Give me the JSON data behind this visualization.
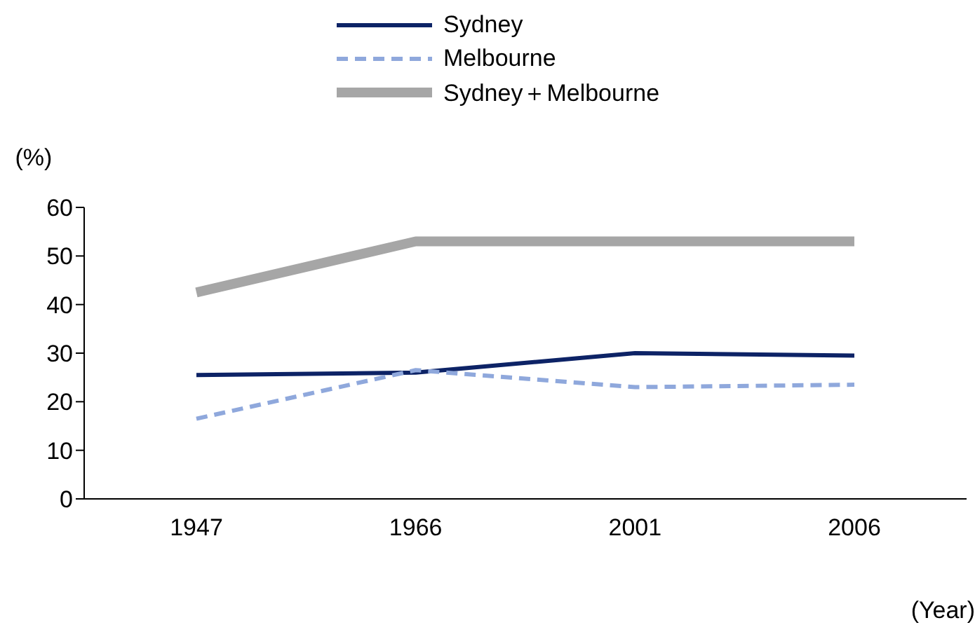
{
  "chart_data": {
    "type": "line",
    "ylabel": "(%)",
    "xlabel": "(Year)",
    "categories": [
      "1947",
      "1966",
      "2001",
      "2006"
    ],
    "series": [
      {
        "name": "Sydney",
        "color": "#0d2366",
        "values": [
          25.5,
          26,
          30,
          29.5
        ]
      },
      {
        "name": "Melbourne",
        "color": "#8fa8dc",
        "line_style": "dashed",
        "values": [
          16.5,
          26.5,
          23,
          23.5
        ]
      },
      {
        "name": "Sydney＋Melbourne",
        "color": "#a6a6a6",
        "values": [
          42.5,
          53,
          53,
          53
        ]
      }
    ],
    "ylim": [
      0,
      60
    ],
    "yticks": [
      0,
      10,
      20,
      30,
      40,
      50,
      60
    ],
    "grid": false,
    "legend": "top",
    "marker": "none"
  }
}
